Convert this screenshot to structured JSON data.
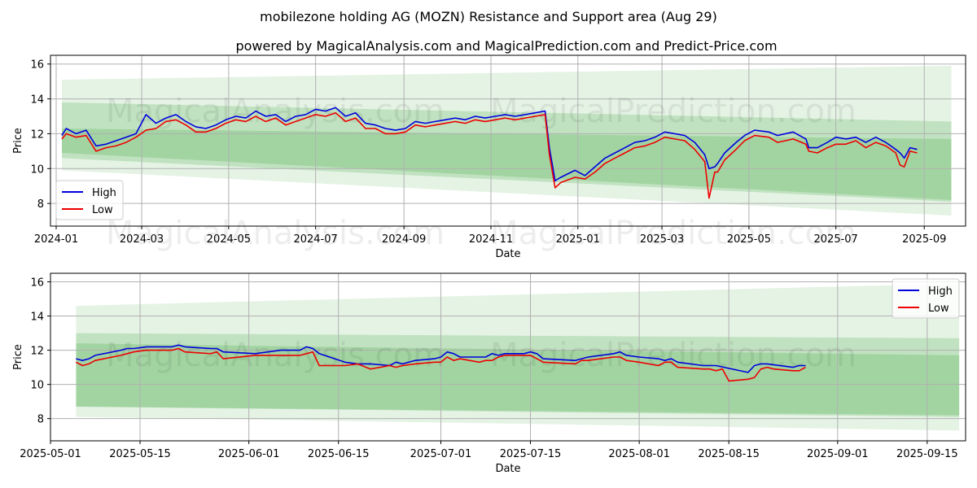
{
  "title": "mobilezone holding AG (MOZN) Resistance and Support area (Aug 29)",
  "subtitle": "powered by MagicalAnalysis.com and MagicalPrediction.com and Predict-Price.com",
  "watermarks": [
    "MagicalAnalysis.com",
    "MagicalPrediction.com"
  ],
  "colors": {
    "high": "#0000dd",
    "low": "#ee0000",
    "band": "#2ca02c"
  },
  "chart_data": [
    {
      "type": "line",
      "xlabel": "Date",
      "ylabel": "Price",
      "xlim": [
        "2023-12-28",
        "2025-09-30"
      ],
      "ylim": [
        6.7,
        16.5
      ],
      "grid": true,
      "legend": "lower-left",
      "x_ticks": [
        "2024-01",
        "2024-03",
        "2024-05",
        "2024-07",
        "2024-09",
        "2024-11",
        "2025-01",
        "2025-03",
        "2025-05",
        "2025-07",
        "2025-09"
      ],
      "y_ticks": [
        8,
        10,
        12,
        14,
        16
      ],
      "bands": [
        {
          "x": [
            "2024-01-05",
            "2025-09-20"
          ],
          "upper": [
            15.1,
            15.9
          ],
          "lower": [
            9.9,
            7.3
          ],
          "opacity": 0.12
        },
        {
          "x": [
            "2024-01-05",
            "2025-09-20"
          ],
          "upper": [
            13.8,
            12.7
          ],
          "lower": [
            10.6,
            8.1
          ],
          "opacity": 0.2
        },
        {
          "x": [
            "2024-01-05",
            "2025-09-20"
          ],
          "upper": [
            12.3,
            11.7
          ],
          "lower": [
            10.9,
            8.2
          ],
          "opacity": 0.2
        }
      ],
      "series": [
        {
          "name": "High",
          "x": [
            "2024-01-05",
            "2024-01-08",
            "2024-01-15",
            "2024-01-22",
            "2024-01-29",
            "2024-02-05",
            "2024-02-12",
            "2024-02-19",
            "2024-02-26",
            "2024-03-04",
            "2024-03-11",
            "2024-03-18",
            "2024-03-25",
            "2024-04-01",
            "2024-04-08",
            "2024-04-15",
            "2024-04-22",
            "2024-04-29",
            "2024-05-06",
            "2024-05-13",
            "2024-05-20",
            "2024-05-27",
            "2024-06-03",
            "2024-06-10",
            "2024-06-17",
            "2024-06-24",
            "2024-07-01",
            "2024-07-08",
            "2024-07-15",
            "2024-07-22",
            "2024-07-29",
            "2024-08-05",
            "2024-08-12",
            "2024-08-19",
            "2024-08-26",
            "2024-09-02",
            "2024-09-09",
            "2024-09-16",
            "2024-09-23",
            "2024-09-30",
            "2024-10-07",
            "2024-10-14",
            "2024-10-21",
            "2024-10-28",
            "2024-11-04",
            "2024-11-11",
            "2024-11-18",
            "2024-11-25",
            "2024-12-02",
            "2024-12-09",
            "2024-12-12",
            "2024-12-16",
            "2024-12-20",
            "2024-12-30",
            "2025-01-06",
            "2025-01-13",
            "2025-01-20",
            "2025-01-27",
            "2025-02-03",
            "2025-02-10",
            "2025-02-17",
            "2025-02-24",
            "2025-03-03",
            "2025-03-10",
            "2025-03-17",
            "2025-03-24",
            "2025-03-31",
            "2025-04-03",
            "2025-04-07",
            "2025-04-09",
            "2025-04-14",
            "2025-04-22",
            "2025-04-28",
            "2025-05-05",
            "2025-05-15",
            "2025-05-21",
            "2025-06-01",
            "2025-06-10",
            "2025-06-12",
            "2025-06-18",
            "2025-06-25",
            "2025-07-01",
            "2025-07-08",
            "2025-07-15",
            "2025-07-22",
            "2025-07-29",
            "2025-08-05",
            "2025-08-12",
            "2025-08-15",
            "2025-08-18",
            "2025-08-22",
            "2025-08-27"
          ],
          "y": [
            11.9,
            12.3,
            12.0,
            12.2,
            11.3,
            11.4,
            11.6,
            11.8,
            12.0,
            13.1,
            12.6,
            12.9,
            13.1,
            12.7,
            12.4,
            12.3,
            12.5,
            12.8,
            13.0,
            12.9,
            13.3,
            13.0,
            13.1,
            12.7,
            13.0,
            13.1,
            13.4,
            13.3,
            13.5,
            13.0,
            13.2,
            12.6,
            12.5,
            12.3,
            12.2,
            12.3,
            12.7,
            12.6,
            12.7,
            12.8,
            12.9,
            12.8,
            13.0,
            12.9,
            13.0,
            13.1,
            13.0,
            13.1,
            13.2,
            13.3,
            11.2,
            9.3,
            9.5,
            9.9,
            9.6,
            10.1,
            10.6,
            10.9,
            11.2,
            11.5,
            11.6,
            11.8,
            12.1,
            12.0,
            11.9,
            11.5,
            10.8,
            10.0,
            10.1,
            10.3,
            10.9,
            11.5,
            11.9,
            12.2,
            12.1,
            11.9,
            12.1,
            11.7,
            11.2,
            11.2,
            11.5,
            11.8,
            11.7,
            11.8,
            11.5,
            11.8,
            11.5,
            11.1,
            10.9,
            10.6,
            11.2,
            11.1
          ]
        },
        {
          "name": "Low",
          "x": [
            "2024-01-05",
            "2024-01-08",
            "2024-01-15",
            "2024-01-22",
            "2024-01-29",
            "2024-02-05",
            "2024-02-12",
            "2024-02-19",
            "2024-02-26",
            "2024-03-04",
            "2024-03-11",
            "2024-03-18",
            "2024-03-25",
            "2024-04-01",
            "2024-04-08",
            "2024-04-15",
            "2024-04-22",
            "2024-04-29",
            "2024-05-06",
            "2024-05-13",
            "2024-05-20",
            "2024-05-27",
            "2024-06-03",
            "2024-06-10",
            "2024-06-17",
            "2024-06-24",
            "2024-07-01",
            "2024-07-08",
            "2024-07-15",
            "2024-07-22",
            "2024-07-29",
            "2024-08-05",
            "2024-08-12",
            "2024-08-19",
            "2024-08-26",
            "2024-09-02",
            "2024-09-09",
            "2024-09-16",
            "2024-09-23",
            "2024-09-30",
            "2024-10-07",
            "2024-10-14",
            "2024-10-21",
            "2024-10-28",
            "2024-11-04",
            "2024-11-11",
            "2024-11-18",
            "2024-11-25",
            "2024-12-02",
            "2024-12-09",
            "2024-12-12",
            "2024-12-16",
            "2024-12-20",
            "2024-12-30",
            "2025-01-06",
            "2025-01-13",
            "2025-01-20",
            "2025-01-27",
            "2025-02-03",
            "2025-02-10",
            "2025-02-17",
            "2025-02-24",
            "2025-03-03",
            "2025-03-10",
            "2025-03-17",
            "2025-03-24",
            "2025-03-31",
            "2025-04-03",
            "2025-04-07",
            "2025-04-09",
            "2025-04-14",
            "2025-04-22",
            "2025-04-28",
            "2025-05-05",
            "2025-05-15",
            "2025-05-21",
            "2025-06-01",
            "2025-06-10",
            "2025-06-12",
            "2025-06-18",
            "2025-06-25",
            "2025-07-01",
            "2025-07-08",
            "2025-07-15",
            "2025-07-22",
            "2025-07-29",
            "2025-08-05",
            "2025-08-12",
            "2025-08-15",
            "2025-08-18",
            "2025-08-22",
            "2025-08-27"
          ],
          "y": [
            11.7,
            12.0,
            11.8,
            11.9,
            11.0,
            11.2,
            11.3,
            11.5,
            11.8,
            12.2,
            12.3,
            12.7,
            12.8,
            12.5,
            12.1,
            12.1,
            12.3,
            12.6,
            12.8,
            12.7,
            13.0,
            12.7,
            12.9,
            12.5,
            12.7,
            12.9,
            13.1,
            13.0,
            13.2,
            12.7,
            12.9,
            12.3,
            12.3,
            12.0,
            12.0,
            12.1,
            12.5,
            12.4,
            12.5,
            12.6,
            12.7,
            12.6,
            12.8,
            12.7,
            12.8,
            12.9,
            12.8,
            12.9,
            13.0,
            13.1,
            10.8,
            8.9,
            9.2,
            9.5,
            9.4,
            9.8,
            10.3,
            10.6,
            10.9,
            11.2,
            11.3,
            11.5,
            11.8,
            11.7,
            11.6,
            11.1,
            10.4,
            8.3,
            9.8,
            9.8,
            10.5,
            11.1,
            11.6,
            11.9,
            11.8,
            11.5,
            11.7,
            11.4,
            11.0,
            10.9,
            11.2,
            11.4,
            11.4,
            11.6,
            11.2,
            11.5,
            11.3,
            10.9,
            10.2,
            10.1,
            11.0,
            10.9
          ]
        }
      ]
    },
    {
      "type": "line",
      "xlabel": "Date",
      "ylabel": "Price",
      "xlim": [
        "2025-05-01",
        "2025-09-21"
      ],
      "ylim": [
        6.7,
        16.5
      ],
      "grid": true,
      "legend": "upper-right",
      "x_ticks": [
        "2025-05-01",
        "2025-05-15",
        "2025-06-01",
        "2025-06-15",
        "2025-07-01",
        "2025-07-15",
        "2025-08-01",
        "2025-08-15",
        "2025-09-01",
        "2025-09-15"
      ],
      "y_ticks": [
        8,
        10,
        12,
        14,
        16
      ],
      "bands": [
        {
          "x": [
            "2025-05-05",
            "2025-09-20"
          ],
          "upper": [
            14.6,
            15.9
          ],
          "lower": [
            8.1,
            7.3
          ],
          "opacity": 0.12
        },
        {
          "x": [
            "2025-05-05",
            "2025-09-20"
          ],
          "upper": [
            13.0,
            12.7
          ],
          "lower": [
            8.7,
            8.1
          ],
          "opacity": 0.2
        },
        {
          "x": [
            "2025-05-05",
            "2025-09-20"
          ],
          "upper": [
            12.4,
            11.7
          ],
          "lower": [
            8.7,
            8.2
          ],
          "opacity": 0.2
        }
      ],
      "series": [
        {
          "name": "High",
          "x": [
            "2025-05-05",
            "2025-05-06",
            "2025-05-07",
            "2025-05-08",
            "2025-05-12",
            "2025-05-13",
            "2025-05-14",
            "2025-05-16",
            "2025-05-20",
            "2025-05-21",
            "2025-05-22",
            "2025-05-26",
            "2025-05-27",
            "2025-05-28",
            "2025-06-02",
            "2025-06-04",
            "2025-06-06",
            "2025-06-09",
            "2025-06-10",
            "2025-06-11",
            "2025-06-12",
            "2025-06-16",
            "2025-06-18",
            "2025-06-20",
            "2025-06-23",
            "2025-06-24",
            "2025-06-25",
            "2025-06-27",
            "2025-06-30",
            "2025-07-01",
            "2025-07-02",
            "2025-07-03",
            "2025-07-04",
            "2025-07-07",
            "2025-07-08",
            "2025-07-09",
            "2025-07-10",
            "2025-07-11",
            "2025-07-14",
            "2025-07-15",
            "2025-07-16",
            "2025-07-17",
            "2025-07-22",
            "2025-07-23",
            "2025-07-24",
            "2025-07-28",
            "2025-07-29",
            "2025-07-30",
            "2025-08-01",
            "2025-08-04",
            "2025-08-05",
            "2025-08-06",
            "2025-08-07",
            "2025-08-11",
            "2025-08-12",
            "2025-08-13",
            "2025-08-18",
            "2025-08-19",
            "2025-08-20",
            "2025-08-21",
            "2025-08-25",
            "2025-08-26",
            "2025-08-27"
          ],
          "y": [
            11.5,
            11.4,
            11.5,
            11.7,
            12.0,
            12.1,
            12.1,
            12.2,
            12.2,
            12.3,
            12.2,
            12.1,
            12.1,
            11.9,
            11.8,
            11.9,
            12.0,
            12.0,
            12.2,
            12.1,
            11.8,
            11.3,
            11.2,
            11.2,
            11.1,
            11.3,
            11.2,
            11.4,
            11.5,
            11.6,
            11.9,
            11.8,
            11.6,
            11.6,
            11.6,
            11.8,
            11.7,
            11.8,
            11.8,
            11.9,
            11.8,
            11.5,
            11.4,
            11.5,
            11.6,
            11.8,
            11.9,
            11.7,
            11.6,
            11.5,
            11.4,
            11.5,
            11.3,
            11.1,
            11.1,
            11.1,
            10.7,
            11.1,
            11.2,
            11.2,
            11.0,
            11.1,
            11.1
          ]
        },
        {
          "name": "Low",
          "x": [
            "2025-05-05",
            "2025-05-06",
            "2025-05-07",
            "2025-05-08",
            "2025-05-12",
            "2025-05-13",
            "2025-05-14",
            "2025-05-16",
            "2025-05-20",
            "2025-05-21",
            "2025-05-22",
            "2025-05-26",
            "2025-05-27",
            "2025-05-28",
            "2025-06-02",
            "2025-06-04",
            "2025-06-06",
            "2025-06-09",
            "2025-06-10",
            "2025-06-11",
            "2025-06-12",
            "2025-06-16",
            "2025-06-18",
            "2025-06-20",
            "2025-06-23",
            "2025-06-24",
            "2025-06-25",
            "2025-06-27",
            "2025-06-30",
            "2025-07-01",
            "2025-07-02",
            "2025-07-03",
            "2025-07-04",
            "2025-07-07",
            "2025-07-08",
            "2025-07-09",
            "2025-07-10",
            "2025-07-11",
            "2025-07-14",
            "2025-07-15",
            "2025-07-16",
            "2025-07-17",
            "2025-07-22",
            "2025-07-23",
            "2025-07-24",
            "2025-07-28",
            "2025-07-29",
            "2025-07-30",
            "2025-08-01",
            "2025-08-04",
            "2025-08-05",
            "2025-08-06",
            "2025-08-07",
            "2025-08-11",
            "2025-08-12",
            "2025-08-13",
            "2025-08-14",
            "2025-08-15",
            "2025-08-18",
            "2025-08-19",
            "2025-08-20",
            "2025-08-21",
            "2025-08-22",
            "2025-08-25",
            "2025-08-26",
            "2025-08-27"
          ],
          "y": [
            11.3,
            11.1,
            11.2,
            11.4,
            11.7,
            11.8,
            11.9,
            12.0,
            12.0,
            12.1,
            11.9,
            11.8,
            11.9,
            11.5,
            11.7,
            11.7,
            11.7,
            11.7,
            11.8,
            11.9,
            11.1,
            11.1,
            11.2,
            10.9,
            11.1,
            11.0,
            11.1,
            11.2,
            11.3,
            11.3,
            11.6,
            11.4,
            11.5,
            11.3,
            11.4,
            11.4,
            11.6,
            11.7,
            11.7,
            11.7,
            11.5,
            11.3,
            11.2,
            11.4,
            11.4,
            11.6,
            11.6,
            11.4,
            11.3,
            11.1,
            11.3,
            11.3,
            11.0,
            10.9,
            10.9,
            10.8,
            10.9,
            10.2,
            10.3,
            10.4,
            10.9,
            11.0,
            10.9,
            10.8,
            10.8,
            11.0
          ]
        }
      ]
    }
  ]
}
